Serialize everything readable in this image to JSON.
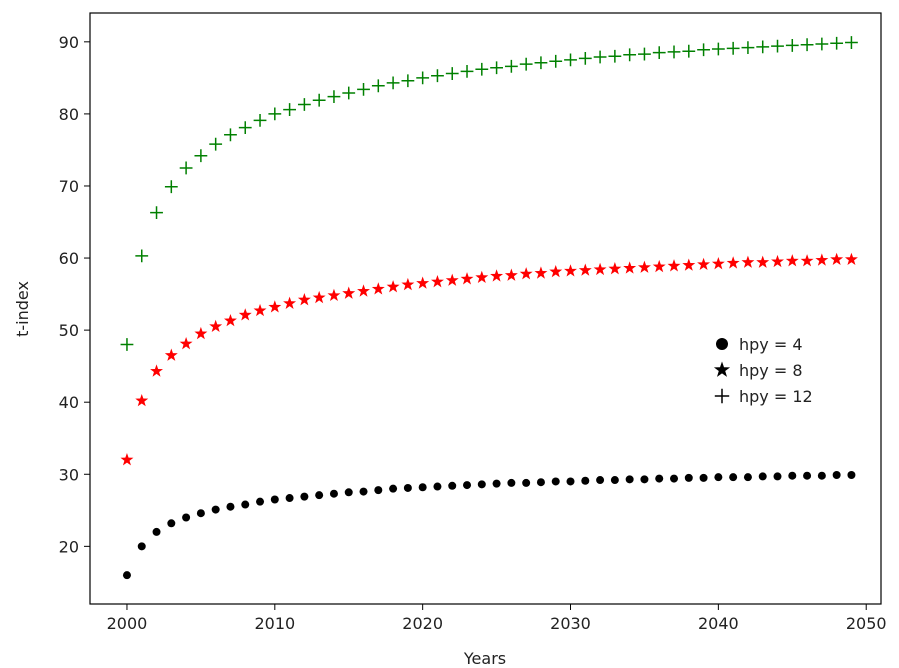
{
  "chart_data": {
    "type": "scatter",
    "xlabel": "Years",
    "ylabel": "t-index",
    "xlim": [
      1997.5,
      2051
    ],
    "ylim": [
      12,
      94
    ],
    "xticks": [
      2000,
      2010,
      2020,
      2030,
      2040,
      2050
    ],
    "yticks": [
      20,
      30,
      40,
      50,
      60,
      70,
      80,
      90
    ],
    "x": [
      2000,
      2001,
      2002,
      2003,
      2004,
      2005,
      2006,
      2007,
      2008,
      2009,
      2010,
      2011,
      2012,
      2013,
      2014,
      2015,
      2016,
      2017,
      2018,
      2019,
      2020,
      2021,
      2022,
      2023,
      2024,
      2025,
      2026,
      2027,
      2028,
      2029,
      2030,
      2031,
      2032,
      2033,
      2034,
      2035,
      2036,
      2037,
      2038,
      2039,
      2040,
      2041,
      2042,
      2043,
      2044,
      2045,
      2046,
      2047,
      2048,
      2049
    ],
    "grid": false,
    "legend_position": "right",
    "series": [
      {
        "name": "hpy = 4",
        "marker": "circle",
        "color": "#000000",
        "values": [
          16.0,
          20.0,
          22.0,
          23.2,
          24.0,
          24.6,
          25.1,
          25.5,
          25.8,
          26.2,
          26.5,
          26.7,
          26.9,
          27.1,
          27.3,
          27.5,
          27.6,
          27.8,
          28.0,
          28.1,
          28.2,
          28.3,
          28.4,
          28.5,
          28.6,
          28.7,
          28.8,
          28.8,
          28.9,
          29.0,
          29.0,
          29.1,
          29.2,
          29.2,
          29.3,
          29.3,
          29.4,
          29.4,
          29.5,
          29.5,
          29.6,
          29.6,
          29.6,
          29.7,
          29.7,
          29.8,
          29.8,
          29.8,
          29.9,
          29.9
        ]
      },
      {
        "name": "hpy = 8",
        "marker": "star",
        "color": "#ff0000",
        "values": [
          32.0,
          40.2,
          44.3,
          46.5,
          48.1,
          49.5,
          50.5,
          51.3,
          52.1,
          52.7,
          53.2,
          53.7,
          54.2,
          54.5,
          54.8,
          55.1,
          55.4,
          55.7,
          56.0,
          56.3,
          56.5,
          56.7,
          56.9,
          57.1,
          57.3,
          57.5,
          57.6,
          57.8,
          57.9,
          58.1,
          58.2,
          58.3,
          58.4,
          58.5,
          58.6,
          58.7,
          58.8,
          58.9,
          59.0,
          59.1,
          59.2,
          59.3,
          59.4,
          59.4,
          59.5,
          59.6,
          59.6,
          59.7,
          59.8,
          59.8
        ]
      },
      {
        "name": "hpy = 12",
        "marker": "plus",
        "color": "#008000",
        "values": [
          48.0,
          60.3,
          66.3,
          69.9,
          72.5,
          74.2,
          75.8,
          77.1,
          78.1,
          79.1,
          80.0,
          80.6,
          81.3,
          81.9,
          82.4,
          82.9,
          83.4,
          83.9,
          84.3,
          84.6,
          85.0,
          85.3,
          85.6,
          85.9,
          86.2,
          86.4,
          86.6,
          86.9,
          87.1,
          87.3,
          87.5,
          87.7,
          87.9,
          88.0,
          88.2,
          88.3,
          88.5,
          88.6,
          88.7,
          88.9,
          89.0,
          89.1,
          89.2,
          89.3,
          89.4,
          89.5,
          89.6,
          89.7,
          89.8,
          89.9
        ]
      }
    ]
  }
}
